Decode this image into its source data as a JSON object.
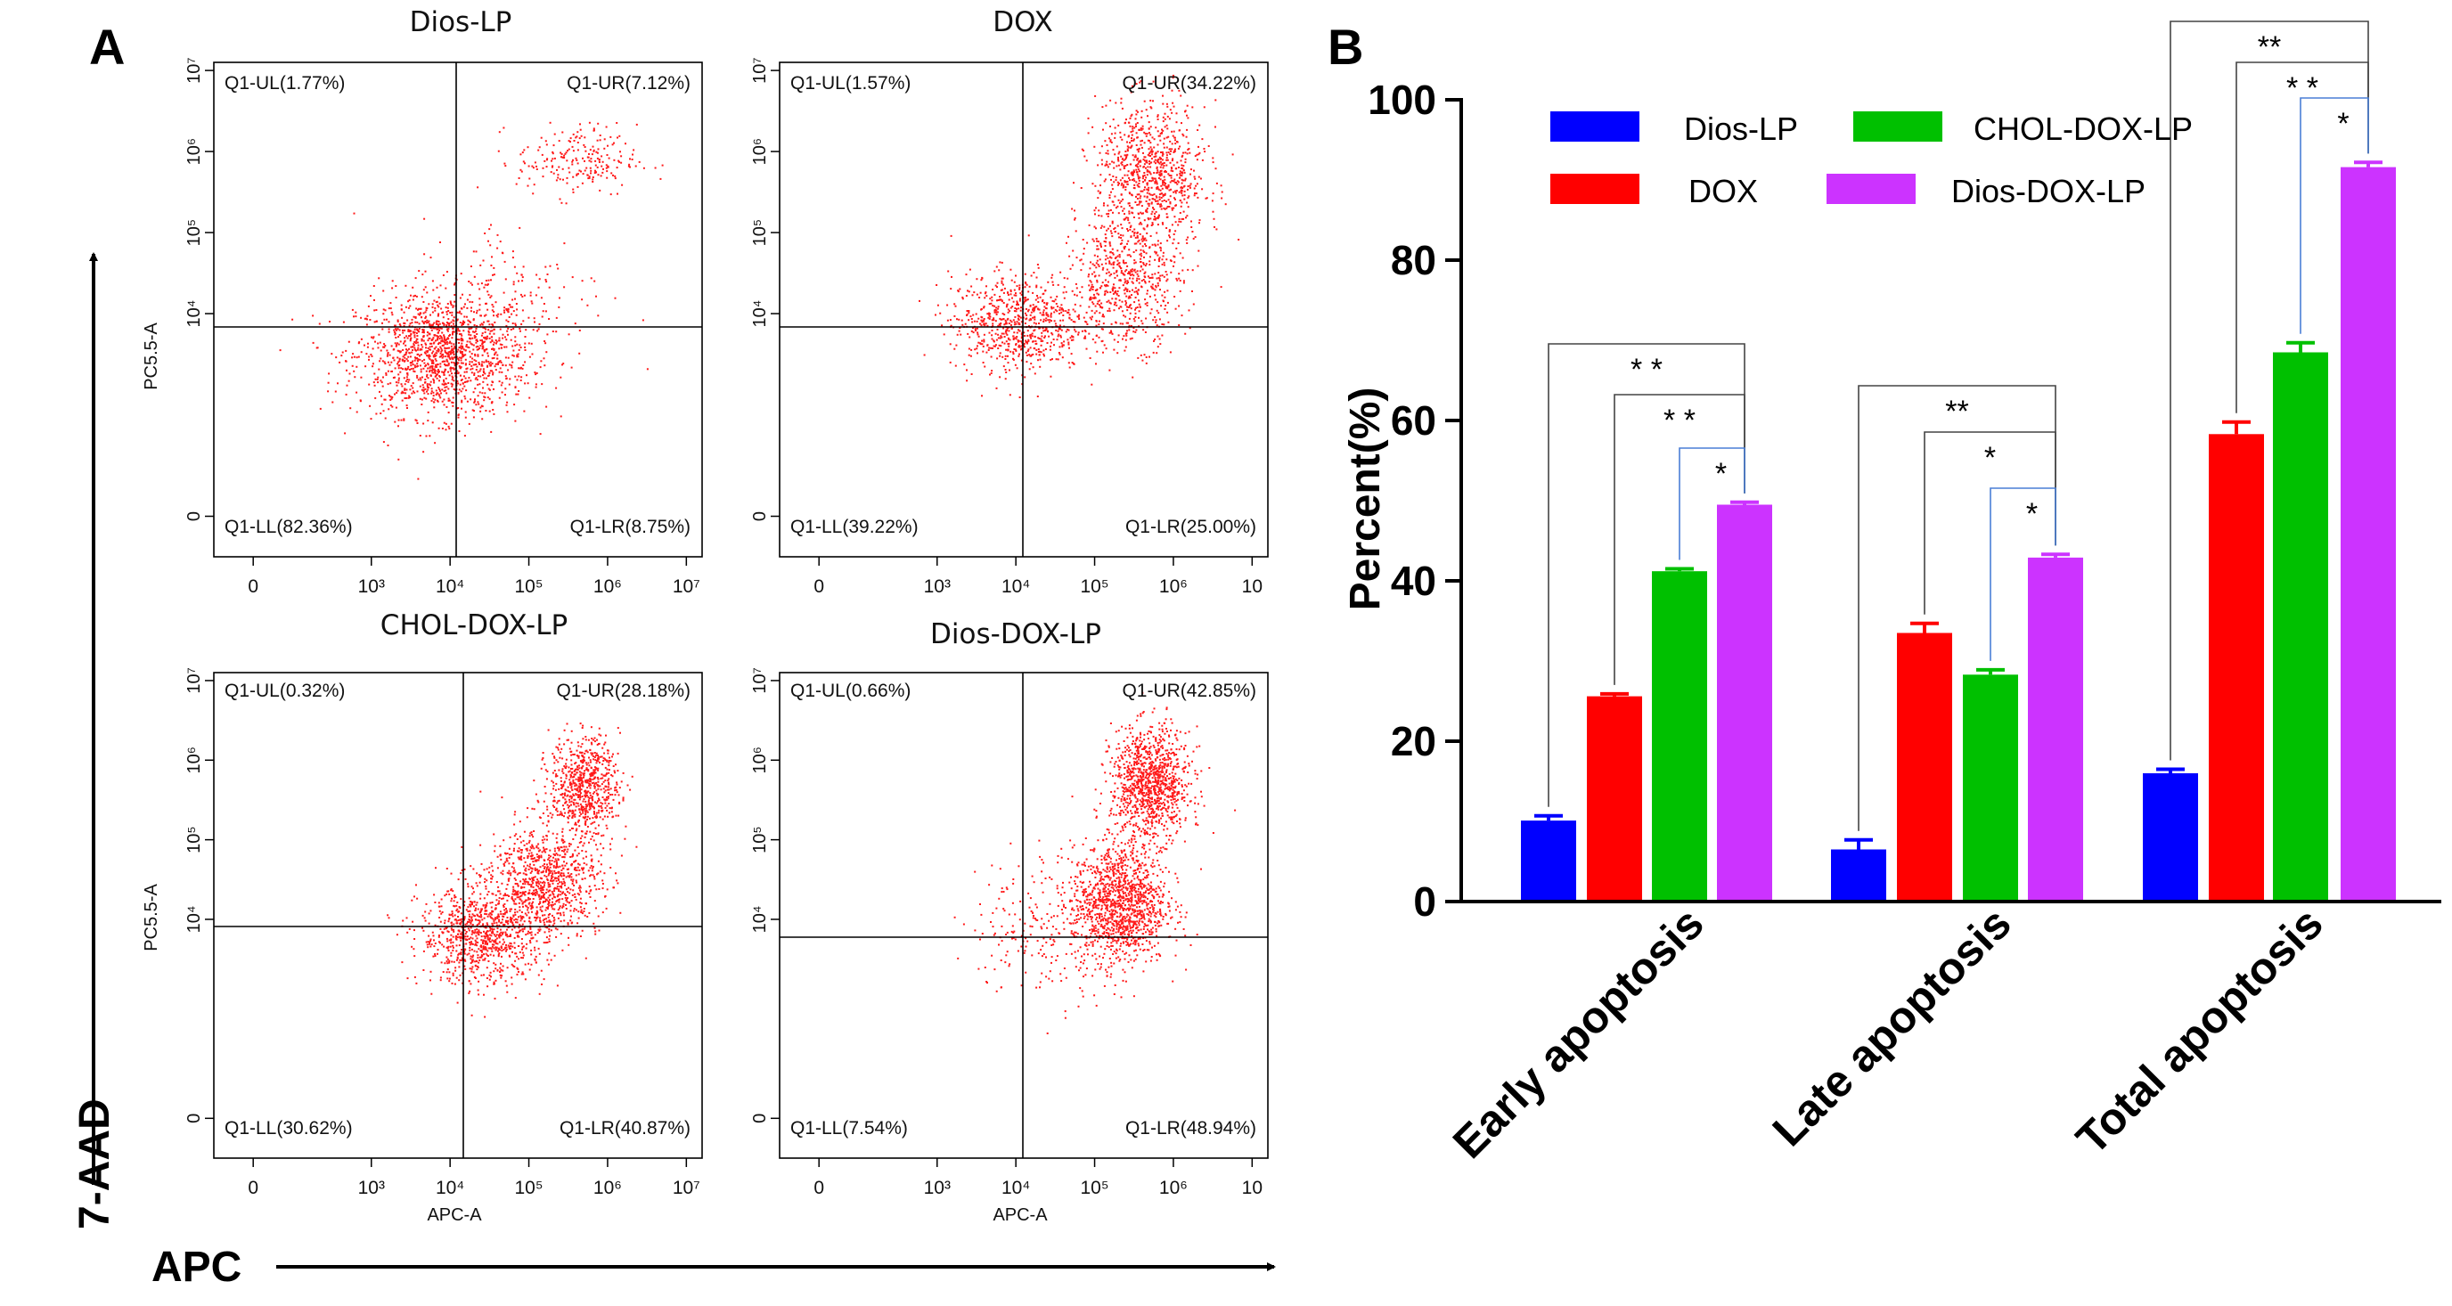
{
  "figure": {
    "panel_a_label": "A",
    "panel_b_label": "B",
    "y_arrow_label": "7-AAD",
    "x_arrow_label": "APC"
  },
  "chart_data": [
    {
      "type": "scatter",
      "title": "Dios-LP",
      "xlabel": "",
      "ylabel": "PC5.5-A",
      "quadrants": {
        "UL": "Q1-UL(1.77%)",
        "UR": "Q1-UR(7.12%)",
        "LL": "Q1-LL(82.36%)",
        "LR": "Q1-LR(8.75%)"
      },
      "x_ticks": [
        "0",
        "10³",
        "10⁴",
        "10⁵",
        "10⁶",
        "10⁷"
      ],
      "y_ticks": [
        "0",
        "10⁴",
        "10⁵",
        "10⁶",
        "10⁷"
      ],
      "clusters": [
        {
          "x": 3.9,
          "y": 3.5,
          "sx": 0.55,
          "sy": 0.38,
          "n": 1500
        },
        {
          "x": 5.6,
          "y": 5.9,
          "sx": 0.38,
          "sy": 0.22,
          "n": 220
        },
        {
          "x": 4.8,
          "y": 4.3,
          "sx": 0.6,
          "sy": 0.45,
          "n": 140
        }
      ]
    },
    {
      "type": "scatter",
      "title": "DOX",
      "xlabel": "",
      "ylabel": "",
      "quadrants": {
        "UL": "Q1-UL(1.57%)",
        "UR": "Q1-UR(34.22%)",
        "LL": "Q1-LL(39.22%)",
        "LR": "Q1-LR(25.00%)"
      },
      "x_ticks": [
        "0",
        "10³",
        "10⁴",
        "10⁵",
        "10⁶",
        "10"
      ],
      "y_ticks": [
        "0",
        "10⁴",
        "10⁵",
        "10⁶",
        "10⁷"
      ],
      "clusters": [
        {
          "x": 4.0,
          "y": 3.9,
          "sx": 0.42,
          "sy": 0.3,
          "n": 750
        },
        {
          "x": 5.7,
          "y": 5.7,
          "sx": 0.35,
          "sy": 0.45,
          "n": 900
        },
        {
          "x": 5.4,
          "y": 4.4,
          "sx": 0.35,
          "sy": 0.4,
          "n": 600
        }
      ]
    },
    {
      "type": "scatter",
      "title": "CHOL-DOX-LP",
      "xlabel": "APC-A",
      "ylabel": "PC5.5-A",
      "quadrants": {
        "UL": "Q1-UL(0.32%)",
        "UR": "Q1-UR(28.18%)",
        "LL": "Q1-LL(30.62%)",
        "LR": "Q1-LR(40.87%)"
      },
      "x_ticks": [
        "0",
        "10³",
        "10⁴",
        "10⁵",
        "10⁶",
        "10⁷"
      ],
      "y_ticks": [
        "0",
        "10⁴",
        "10⁵",
        "10⁶",
        "10⁷"
      ],
      "clusters": [
        {
          "x": 4.4,
          "y": 3.8,
          "sx": 0.4,
          "sy": 0.3,
          "n": 900
        },
        {
          "x": 5.2,
          "y": 4.5,
          "sx": 0.35,
          "sy": 0.35,
          "n": 900
        },
        {
          "x": 5.7,
          "y": 5.7,
          "sx": 0.22,
          "sy": 0.3,
          "n": 700
        }
      ]
    },
    {
      "type": "scatter",
      "title": "Dios-DOX-LP",
      "xlabel": "APC-A",
      "ylabel": "",
      "quadrants": {
        "UL": "Q1-UL(0.66%)",
        "UR": "Q1-UR(42.85%)",
        "LL": "Q1-LL(7.54%)",
        "LR": "Q1-LR(48.94%)"
      },
      "x_ticks": [
        "0",
        "10³",
        "10⁴",
        "10⁵",
        "10⁶",
        "10"
      ],
      "y_ticks": [
        "0",
        "10⁴",
        "10⁵",
        "10⁶",
        "10⁷"
      ],
      "clusters": [
        {
          "x": 5.3,
          "y": 4.2,
          "sx": 0.3,
          "sy": 0.38,
          "n": 1300
        },
        {
          "x": 5.7,
          "y": 5.7,
          "sx": 0.25,
          "sy": 0.35,
          "n": 1100
        },
        {
          "x": 4.3,
          "y": 3.9,
          "sx": 0.45,
          "sy": 0.45,
          "n": 200
        }
      ]
    },
    {
      "type": "bar",
      "title": "",
      "xlabel": "",
      "ylabel": "Percent(%)",
      "ylim": [
        0,
        100
      ],
      "y_ticks": [
        0,
        20,
        40,
        60,
        80,
        100
      ],
      "categories": [
        "Early apoptosis",
        "Late apoptosis",
        "Total apoptosis"
      ],
      "series": [
        {
          "name": "Dios-LP",
          "color": "#0000ff",
          "values": [
            10.1,
            6.5,
            16.0
          ],
          "errors": [
            0.6,
            1.2,
            0.5
          ]
        },
        {
          "name": "DOX",
          "color": "#ff0000",
          "values": [
            25.6,
            33.5,
            58.3
          ],
          "errors": [
            0.3,
            1.2,
            1.5
          ]
        },
        {
          "name": "CHOL-DOX-LP",
          "color": "#00c000",
          "values": [
            41.2,
            28.3,
            68.5
          ],
          "errors": [
            0.3,
            0.6,
            1.2
          ]
        },
        {
          "name": "Dios-DOX-LP",
          "color": "#cc33ff",
          "values": [
            49.5,
            42.9,
            91.6
          ],
          "errors": [
            0.3,
            0.4,
            0.6
          ]
        }
      ],
      "significance": [
        {
          "category": 0,
          "from": 0,
          "to": 3,
          "label": "* *"
        },
        {
          "category": 0,
          "from": 1,
          "to": 3,
          "label": "* *"
        },
        {
          "category": 0,
          "from": 2,
          "to": 3,
          "label": "*"
        },
        {
          "category": 1,
          "from": 0,
          "to": 3,
          "label": "**"
        },
        {
          "category": 1,
          "from": 1,
          "to": 3,
          "label": "*"
        },
        {
          "category": 1,
          "from": 2,
          "to": 3,
          "label": "*"
        },
        {
          "category": 2,
          "from": 0,
          "to": 3,
          "label": "**"
        },
        {
          "category": 2,
          "from": 1,
          "to": 3,
          "label": "* *"
        },
        {
          "category": 2,
          "from": 2,
          "to": 3,
          "label": "*"
        }
      ],
      "legend_location": "top-left"
    }
  ]
}
